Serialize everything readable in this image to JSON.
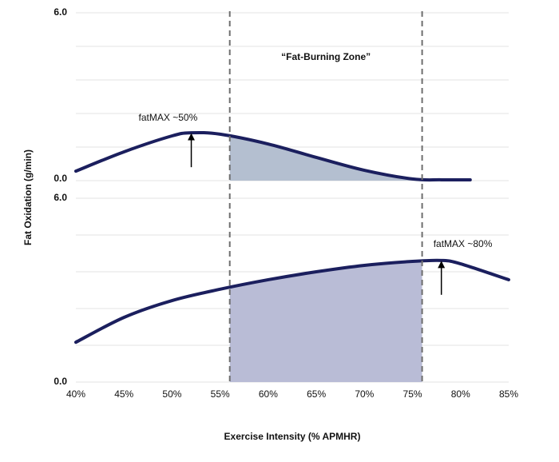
{
  "chart_data": [
    {
      "type": "area",
      "zone_label": "“Fat-Burning Zone”",
      "ylabel": "Fat Oxidation (g/min)",
      "x": [
        40,
        45,
        50,
        52,
        55,
        60,
        65,
        70,
        75,
        78,
        81
      ],
      "values": [
        0.34,
        1.03,
        1.6,
        1.71,
        1.66,
        1.31,
        0.83,
        0.37,
        0.06,
        0.03,
        0.03
      ],
      "color": "#1b1f5e",
      "fill": "#b4bfd0",
      "zone": [
        56,
        76
      ],
      "xlim": [
        40,
        85
      ],
      "ylim": [
        0,
        6
      ],
      "yticks": [
        {
          "value": 0,
          "label": "0.0"
        },
        {
          "value": 6,
          "label": "6.0"
        }
      ],
      "ygrid": [
        1.2,
        2.4,
        3.6,
        4.8
      ],
      "annotation": {
        "text": "fatMAX ~50%",
        "x": 52
      }
    },
    {
      "type": "area",
      "xlabel": "Exercise Intensity (% APMHR)",
      "x": [
        40,
        45,
        50,
        55,
        60,
        65,
        70,
        75,
        78,
        80,
        85
      ],
      "values": [
        1.3,
        2.11,
        2.66,
        3.03,
        3.34,
        3.6,
        3.81,
        3.94,
        3.97,
        3.86,
        3.34
      ],
      "color": "#1b1f5e",
      "fill": "#b9bcd6",
      "zone": [
        56,
        76
      ],
      "xlim": [
        40,
        85
      ],
      "ylim": [
        0,
        6
      ],
      "yticks": [
        {
          "value": 0,
          "label": "0.0"
        },
        {
          "value": 6,
          "label": "6.0"
        }
      ],
      "ygrid": [
        1.2,
        2.4,
        3.6,
        4.8
      ],
      "xticks": [
        {
          "value": 40,
          "label": "40%"
        },
        {
          "value": 45,
          "label": "45%"
        },
        {
          "value": 50,
          "label": "50%"
        },
        {
          "value": 55,
          "label": "55%"
        },
        {
          "value": 60,
          "label": "60%"
        },
        {
          "value": 65,
          "label": "65%"
        },
        {
          "value": 70,
          "label": "70%"
        },
        {
          "value": 75,
          "label": "75%"
        },
        {
          "value": 80,
          "label": "80%"
        },
        {
          "value": 85,
          "label": "85%"
        }
      ],
      "annotation": {
        "text": "fatMAX ~80%",
        "x": 78
      }
    }
  ]
}
